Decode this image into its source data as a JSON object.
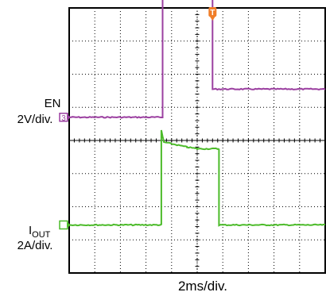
{
  "chart_data": {
    "type": "line",
    "title": "",
    "xlabel": "2ms/div.",
    "ylabel": "",
    "grid": true,
    "x_divisions": 10,
    "y_divisions": 8,
    "channels": [
      {
        "id": "en",
        "name": "EN",
        "scale": "2V/div.",
        "marker": "3",
        "color": "#9b3fa0",
        "level_div": 4.7,
        "x": [
          0,
          3.65,
          3.65,
          5.6,
          5.6,
          10
        ],
        "y": [
          0,
          0,
          3.6,
          3.6,
          0.85,
          0.85
        ]
      },
      {
        "id": "iout",
        "name": "I",
        "name_sub": "OUT",
        "scale": "2A/div.",
        "marker": "",
        "color": "#4cbb2a",
        "level_div": 1.45,
        "x": [
          0,
          3.6,
          3.6,
          3.7,
          4.6,
          5.0,
          5.85,
          5.85,
          10
        ],
        "y": [
          0,
          0,
          2.85,
          2.5,
          2.35,
          2.3,
          2.3,
          0,
          0
        ]
      }
    ],
    "trigger": {
      "marker": "T",
      "color": "#f07d28",
      "position_div": 5.6
    }
  }
}
